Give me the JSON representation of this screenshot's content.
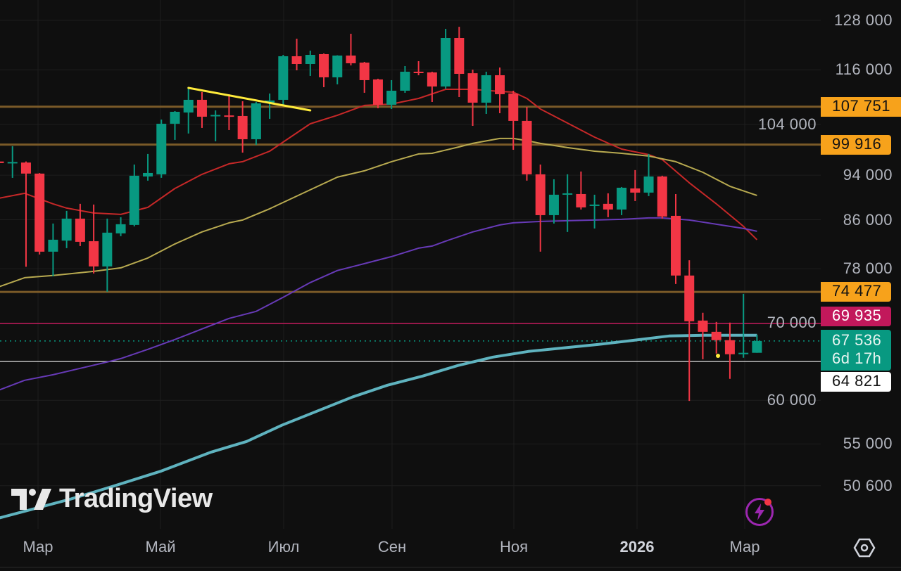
{
  "colors": {
    "up": "#089981",
    "down": "#f23645",
    "level": "#7a5a28",
    "level_label": "#f7a21b",
    "pink": "#c2185b",
    "white_line": "#bdbdbd",
    "current": "#089981",
    "trend": "#ffeb3b"
  },
  "watermark": "TradingView",
  "time_axis": [
    "Мар",
    "Май",
    "Июл",
    "Сен",
    "Ноя",
    "2026",
    "Мар"
  ],
  "chart_data": {
    "type": "candlestick",
    "scale": "log",
    "ylim": [
      46000,
      132000
    ],
    "y_ticks": [
      {
        "value": 128000,
        "label": "128 000"
      },
      {
        "value": 116000,
        "label": "116 000"
      },
      {
        "value": 104000,
        "label": "104 000"
      },
      {
        "value": 94000,
        "label": "94 000"
      },
      {
        "value": 86000,
        "label": "86 000"
      },
      {
        "value": 78000,
        "label": "78 000"
      },
      {
        "value": 70000,
        "label": "70 000"
      },
      {
        "value": 60000,
        "label": "60 000"
      },
      {
        "value": 55000,
        "label": "55 000"
      },
      {
        "value": 50600,
        "label": "50 600"
      }
    ],
    "candles_ohlc": [
      [
        96600,
        96700,
        96200,
        96300
      ],
      [
        96400,
        99600,
        93500,
        96500
      ],
      [
        96400,
        96600,
        78300,
        94300
      ],
      [
        94300,
        94400,
        80250,
        80700
      ],
      [
        80700,
        85360,
        76840,
        82650
      ],
      [
        82500,
        87540,
        81270,
        86200
      ],
      [
        86200,
        88780,
        81610,
        82300
      ],
      [
        82400,
        88650,
        77270,
        78360
      ],
      [
        78360,
        86200,
        74500,
        83820
      ],
      [
        83700,
        86440,
        83230,
        85240
      ],
      [
        85120,
        96020,
        84880,
        93900
      ],
      [
        93760,
        98070,
        92980,
        94420
      ],
      [
        94160,
        105040,
        93500,
        104160
      ],
      [
        104160,
        106820,
        100860,
        106670
      ],
      [
        106520,
        112040,
        102140,
        109250
      ],
      [
        109250,
        110940,
        103290,
        105630
      ],
      [
        105900,
        106970,
        100570,
        106000
      ],
      [
        105900,
        110480,
        102850,
        105700
      ],
      [
        105780,
        108940,
        98340,
        100990
      ],
      [
        100990,
        108780,
        99870,
        108480
      ],
      [
        108630,
        110630,
        105190,
        109100
      ],
      [
        109250,
        119500,
        107880,
        119170
      ],
      [
        119170,
        123410,
        115870,
        117340
      ],
      [
        117340,
        120510,
        114580,
        119500
      ],
      [
        119670,
        119830,
        112040,
        114260
      ],
      [
        114260,
        119400,
        112670,
        119330
      ],
      [
        119330,
        124630,
        117010,
        117510
      ],
      [
        117670,
        117840,
        110790,
        113620
      ],
      [
        113780,
        113940,
        107420,
        108180
      ],
      [
        108180,
        113620,
        107270,
        111250
      ],
      [
        111250,
        116850,
        110790,
        115550
      ],
      [
        115550,
        118000,
        114730,
        115390
      ],
      [
        115390,
        115550,
        108780,
        112190
      ],
      [
        112190,
        125860,
        111720,
        123590
      ],
      [
        123590,
        126380,
        109860,
        115060
      ],
      [
        115200,
        116030,
        103720,
        108630
      ],
      [
        108630,
        115550,
        106220,
        114740
      ],
      [
        114740,
        116520,
        106370,
        110480
      ],
      [
        110630,
        111250,
        98890,
        104750
      ],
      [
        104750,
        107720,
        92980,
        94160
      ],
      [
        94160,
        96020,
        80700,
        86800
      ],
      [
        86800,
        93240,
        85360,
        90410
      ],
      [
        90530,
        94160,
        83940,
        90660
      ],
      [
        90530,
        94690,
        87780,
        88150
      ],
      [
        88530,
        90410,
        84520,
        88650
      ],
      [
        88780,
        90660,
        86440,
        87780
      ],
      [
        87780,
        91810,
        86800,
        91680
      ],
      [
        91550,
        94960,
        89270,
        90790
      ],
      [
        90790,
        98070,
        90160,
        93760
      ],
      [
        93760,
        93900,
        86200,
        86560
      ],
      [
        86680,
        90530,
        75660,
        76950
      ],
      [
        76950,
        79330,
        59920,
        70240
      ],
      [
        70340,
        71440,
        65120,
        68780
      ],
      [
        68780,
        70150,
        65860,
        67640
      ],
      [
        67640,
        70050,
        62620,
        65770
      ],
      [
        65860,
        74190,
        65310,
        65960
      ],
      [
        65960,
        68380,
        65960,
        67536
      ]
    ],
    "moving_averages": [
      {
        "name": "ma-red",
        "color": "#c62828",
        "width": 2,
        "points": [
          [
            0,
            89780
          ],
          [
            1.9,
            90660
          ],
          [
            4,
            88780
          ],
          [
            5,
            88030
          ],
          [
            7,
            87170
          ],
          [
            9,
            86930
          ],
          [
            11,
            88150
          ],
          [
            13,
            91550
          ],
          [
            15,
            94160
          ],
          [
            17,
            96160
          ],
          [
            18,
            96570
          ],
          [
            20,
            98610
          ],
          [
            21,
            100430
          ],
          [
            23,
            104160
          ],
          [
            25,
            105930
          ],
          [
            27,
            108030
          ],
          [
            29,
            108330
          ],
          [
            31,
            109550
          ],
          [
            33,
            111560
          ],
          [
            35,
            111560
          ],
          [
            37,
            111100
          ],
          [
            38,
            110940
          ],
          [
            39,
            109550
          ],
          [
            40,
            107270
          ],
          [
            42,
            104300
          ],
          [
            44,
            101420
          ],
          [
            46,
            99030
          ],
          [
            48,
            97930
          ],
          [
            49,
            96970
          ],
          [
            51,
            92590
          ],
          [
            53,
            88780
          ],
          [
            55,
            84880
          ],
          [
            56,
            82650
          ]
        ]
      },
      {
        "name": "ma-yellow",
        "color": "#b8aa50",
        "width": 2,
        "points": [
          [
            0,
            75240
          ],
          [
            1.9,
            76620
          ],
          [
            4,
            76950
          ],
          [
            7,
            77590
          ],
          [
            9,
            78140
          ],
          [
            11,
            79690
          ],
          [
            13,
            81960
          ],
          [
            15,
            83940
          ],
          [
            17,
            85480
          ],
          [
            18,
            85960
          ],
          [
            20,
            87910
          ],
          [
            21,
            89020
          ],
          [
            23,
            91300
          ],
          [
            25,
            93630
          ],
          [
            27,
            94820
          ],
          [
            29,
            96570
          ],
          [
            31,
            98070
          ],
          [
            32,
            98200
          ],
          [
            34,
            99450
          ],
          [
            35,
            100150
          ],
          [
            37,
            101140
          ],
          [
            38,
            101140
          ],
          [
            39,
            100710
          ],
          [
            40,
            100150
          ],
          [
            42,
            99310
          ],
          [
            44,
            98610
          ],
          [
            46,
            98200
          ],
          [
            48,
            97660
          ],
          [
            50,
            96570
          ],
          [
            52,
            94550
          ],
          [
            54,
            91940
          ],
          [
            56,
            90280
          ]
        ]
      },
      {
        "name": "ma-purple",
        "color": "#673ab7",
        "width": 2,
        "points": [
          [
            0,
            61230
          ],
          [
            1.9,
            62440
          ],
          [
            4,
            63140
          ],
          [
            6,
            63950
          ],
          [
            8,
            64760
          ],
          [
            9,
            65210
          ],
          [
            11,
            66420
          ],
          [
            13,
            67730
          ],
          [
            15,
            69170
          ],
          [
            17,
            70640
          ],
          [
            19,
            71640
          ],
          [
            21,
            73680
          ],
          [
            23,
            75880
          ],
          [
            25,
            77720
          ],
          [
            27,
            78800
          ],
          [
            29,
            79910
          ],
          [
            31,
            81270
          ],
          [
            32,
            81610
          ],
          [
            33,
            82420
          ],
          [
            35,
            83940
          ],
          [
            37,
            85120
          ],
          [
            38,
            85480
          ],
          [
            40,
            85720
          ],
          [
            42,
            85840
          ],
          [
            44,
            85960
          ],
          [
            46,
            86080
          ],
          [
            48,
            86320
          ],
          [
            49,
            86320
          ],
          [
            51,
            85960
          ],
          [
            53,
            85240
          ],
          [
            55,
            84520
          ],
          [
            56,
            84050
          ]
        ]
      },
      {
        "name": "ma-teal",
        "color": "#5fb3bf",
        "width": 4,
        "points": [
          [
            0,
            47440
          ],
          [
            5.3,
            49270
          ],
          [
            8.4,
            50530
          ],
          [
            12,
            52110
          ],
          [
            15.7,
            54120
          ],
          [
            18.3,
            55270
          ],
          [
            20.9,
            57090
          ],
          [
            23.5,
            58710
          ],
          [
            26.1,
            60380
          ],
          [
            28.7,
            61830
          ],
          [
            31.3,
            62970
          ],
          [
            33.9,
            64310
          ],
          [
            36.5,
            65400
          ],
          [
            39.1,
            66140
          ],
          [
            41.7,
            66600
          ],
          [
            44.3,
            67070
          ],
          [
            46.9,
            67630
          ],
          [
            49.5,
            68210
          ],
          [
            52.1,
            68300
          ],
          [
            56,
            68300
          ]
        ]
      }
    ],
    "trendline": {
      "from": [
        14,
        111880
      ],
      "to": [
        23,
        106970
      ]
    },
    "horizontal_levels": [
      {
        "value": 107751,
        "label": "107 751",
        "kind": "level"
      },
      {
        "value": 99916,
        "label": "99 916",
        "kind": "level"
      },
      {
        "value": 74477,
        "label": "74 477",
        "kind": "level"
      },
      {
        "value": 69935,
        "label": "69 935",
        "kind": "pink"
      },
      {
        "value": 64821,
        "label": "64 821",
        "kind": "white"
      }
    ],
    "current_price": {
      "value": 67536,
      "label": "67 536",
      "countdown": "6d 17h"
    }
  }
}
